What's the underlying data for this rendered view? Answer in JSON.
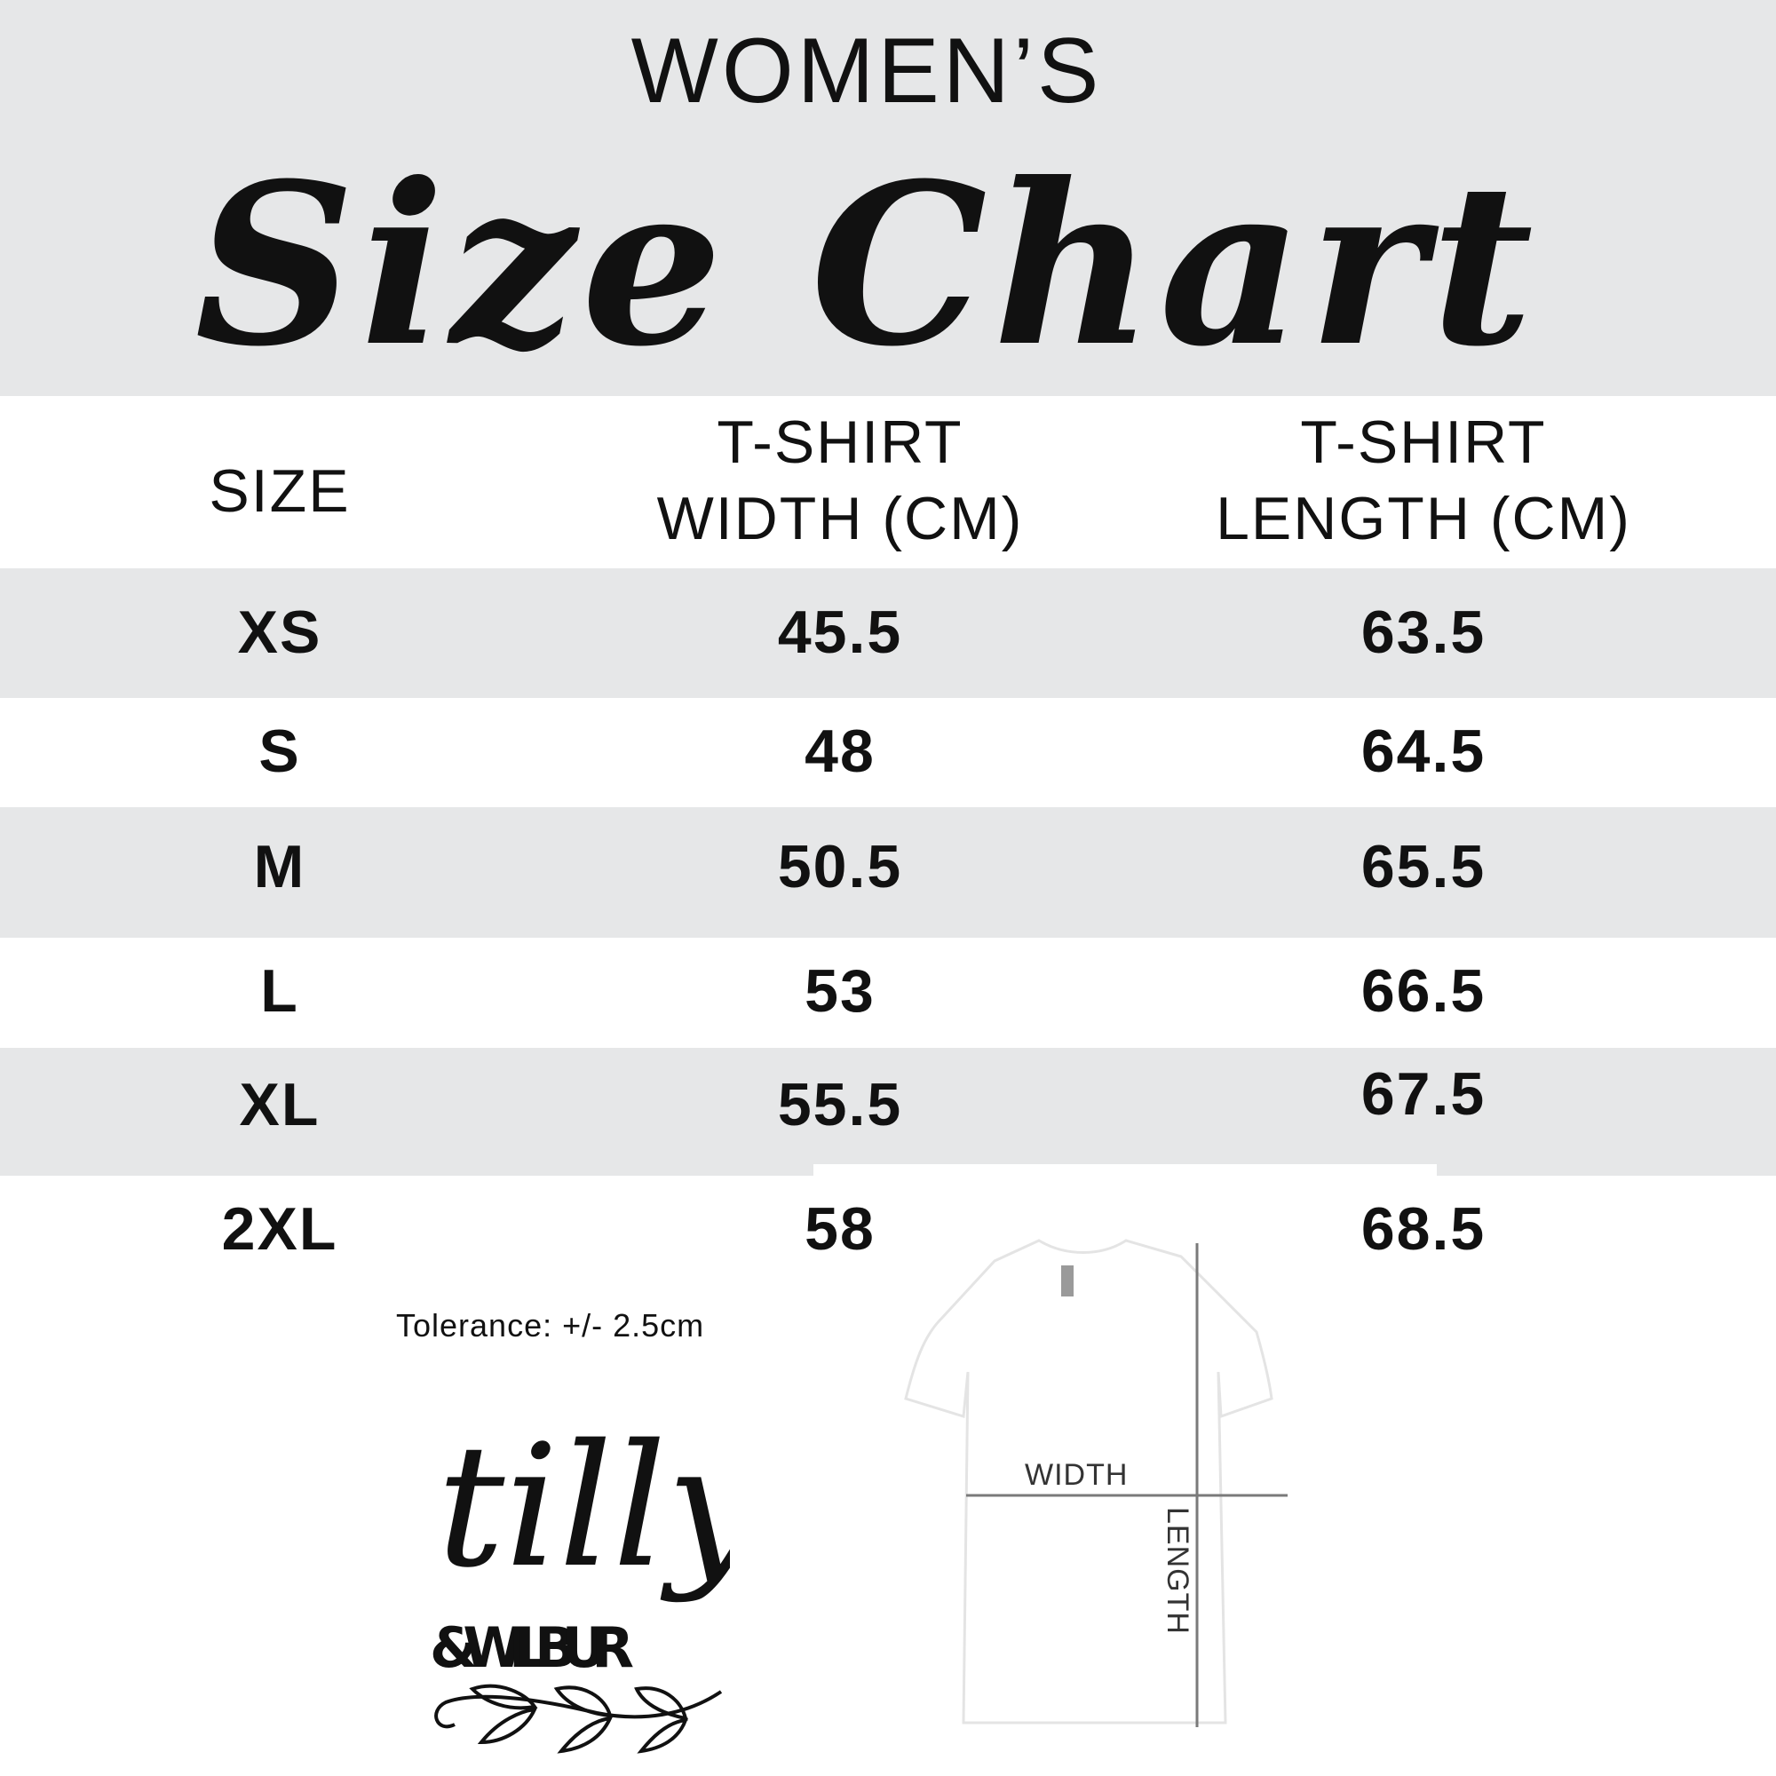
{
  "header": {
    "subtitle": "WOMEN’S",
    "title": "Size Chart",
    "background": "#e6e7e8"
  },
  "table": {
    "columns": [
      {
        "line1": "SIZE",
        "line2": ""
      },
      {
        "line1": "T-SHIRT",
        "line2": "WIDTH (CM)"
      },
      {
        "line1": "T-SHIRT",
        "line2": "LENGTH (CM)"
      }
    ],
    "rows": [
      {
        "size": "XS",
        "width": "45.5",
        "length": "63.5"
      },
      {
        "size": "S",
        "width": "48",
        "length": "64.5"
      },
      {
        "size": "M",
        "width": "50.5",
        "length": "65.5"
      },
      {
        "size": "L",
        "width": "53",
        "length": "66.5"
      },
      {
        "size": "XL",
        "width": "55.5",
        "length": "67.5"
      },
      {
        "size": "2XL",
        "width": "58",
        "length": "68.5"
      }
    ]
  },
  "tolerance": "Tolerance: +/- 2.5cm",
  "logo": {
    "line1": "tilly",
    "line2": "&WILBUR"
  },
  "diagram": {
    "width_label": "WIDTH",
    "length_label": "LENGTH",
    "line_color": "#7a7a7a"
  }
}
